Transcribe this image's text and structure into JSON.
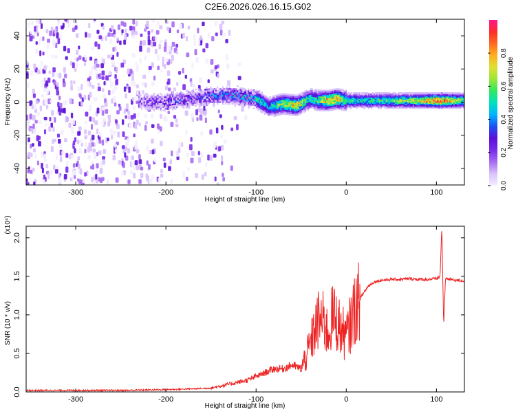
{
  "title": "C2E6.2026.026.16.15.G02",
  "colors": {
    "snr_line": "#ee2222",
    "axis": "#000000",
    "colormap": [
      "#f4eefe",
      "#d9c2fb",
      "#a66cf2",
      "#7a2bea",
      "#5a10d8",
      "#1e50f5",
      "#00b4ff",
      "#00e0c0",
      "#30e860",
      "#9ce63a",
      "#dde030",
      "#ffb020",
      "#ff6a20",
      "#ff2a2a",
      "#ff1a8c"
    ]
  },
  "chart_data": [
    {
      "type": "heatmap",
      "title": "C2E6.2026.026.16.15.G02",
      "xlabel": "Height of straight line (km)",
      "ylabel": "Frequency (Hz)",
      "xlim": [
        -355,
        131
      ],
      "ylim": [
        -50,
        50
      ],
      "xticks": [
        -300,
        -200,
        -100,
        0,
        100
      ],
      "xtick_labels": [
        "-300",
        "-200",
        "-100",
        "0",
        "100"
      ],
      "yticks": [
        -40,
        -20,
        0,
        20,
        40
      ],
      "ytick_labels": [
        "-40",
        "-20",
        "0",
        "20",
        "40"
      ],
      "colorbar": {
        "label": "Normalized spectral amplitude",
        "range": [
          0.0,
          1.0
        ],
        "ticks": [
          0.0,
          0.2,
          0.4,
          0.6,
          0.8
        ],
        "tick_labels": [
          "0.0",
          "0.2",
          "0.4",
          "0.6",
          "0.8"
        ]
      },
      "ridge": {
        "x": [
          -230,
          -200,
          -175,
          -150,
          -125,
          -100,
          -85,
          -70,
          -55,
          -40,
          -30,
          -20,
          -10,
          0,
          20,
          50,
          80,
          100,
          131
        ],
        "frequency": [
          0,
          0,
          2,
          4,
          4,
          2,
          -3,
          -1,
          -2,
          2,
          1,
          1,
          2,
          1,
          1,
          1,
          1,
          1,
          1
        ],
        "amplitude": [
          0.2,
          0.3,
          0.3,
          0.35,
          0.45,
          0.5,
          0.45,
          0.7,
          0.75,
          0.5,
          0.6,
          0.85,
          0.8,
          0.55,
          0.5,
          0.6,
          0.7,
          0.95,
          0.6
        ]
      }
    },
    {
      "type": "line",
      "xlabel": "Height of straight line (km)",
      "ylabel": "SNR (10 * v/v)",
      "y_scale_label": "(x10⁴)",
      "xlim": [
        -355,
        131
      ],
      "ylim": [
        0,
        2.15
      ],
      "xticks": [
        -300,
        -200,
        -100,
        0,
        100
      ],
      "xtick_labels": [
        "-300",
        "-200",
        "-100",
        "0",
        "100"
      ],
      "yticks": [
        0.0,
        0.5,
        1.0,
        1.5,
        2.0
      ],
      "ytick_labels": [
        "0.0",
        "0.5",
        "1.0",
        "1.5",
        "2.0"
      ],
      "series": [
        {
          "name": "SNR",
          "x": [
            -355,
            -300,
            -250,
            -200,
            -170,
            -150,
            -130,
            -110,
            -100,
            -90,
            -80,
            -70,
            -60,
            -50,
            -45,
            -40,
            -35,
            -30,
            -25,
            -20,
            -15,
            -10,
            -5,
            0,
            5,
            10,
            15,
            20,
            25,
            30,
            35,
            40,
            50,
            60,
            70,
            80,
            90,
            100,
            104,
            106,
            108,
            110,
            120,
            131
          ],
          "y": [
            0.02,
            0.02,
            0.02,
            0.03,
            0.04,
            0.05,
            0.1,
            0.15,
            0.2,
            0.25,
            0.3,
            0.3,
            0.35,
            0.3,
            0.45,
            0.6,
            0.8,
            0.95,
            0.9,
            0.75,
            1.0,
            0.9,
            0.8,
            0.7,
            0.9,
            1.1,
            1.2,
            1.3,
            1.38,
            1.42,
            1.44,
            1.45,
            1.46,
            1.46,
            1.47,
            1.46,
            1.46,
            1.47,
            1.5,
            2.15,
            0.85,
            1.47,
            1.45,
            1.44
          ]
        }
      ]
    }
  ]
}
